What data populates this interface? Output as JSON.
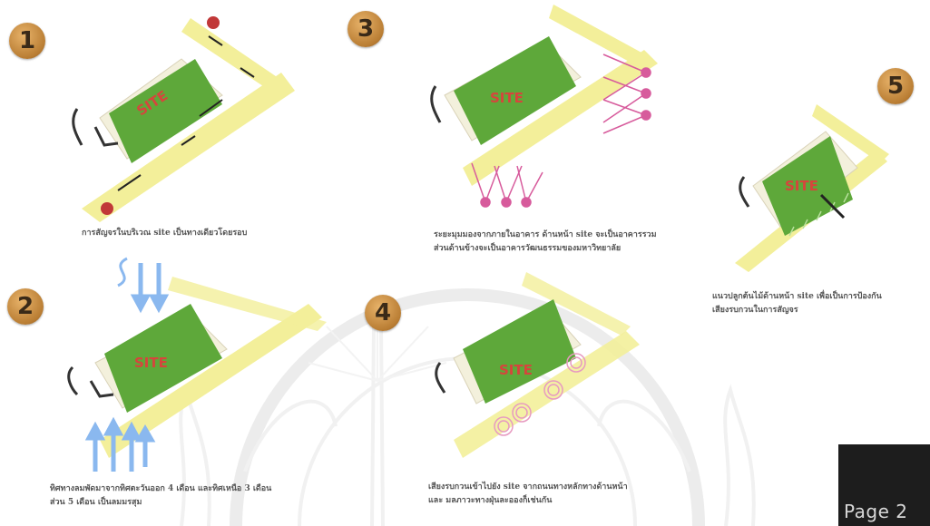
{
  "steps": [
    {
      "number": "1",
      "site_label": "SITE",
      "caption_lines": [
        "การสัญจรในบริเวณ site เป็นทางเดียวโดยรอบ"
      ]
    },
    {
      "number": "2",
      "site_label": "SITE",
      "caption_lines": [
        "ทิศทางลมพัดมาจากทิศตะวันออก 4 เดือน และทิศเหนือ 3 เดือน",
        "ส่วน 5 เดือน เป็นลมมรสุม"
      ]
    },
    {
      "number": "3",
      "site_label": "SITE",
      "caption_lines": [
        "ระยะมุมมองจากภายในอาคาร ด้านหน้า site จะเป็นอาคารรวม",
        "ส่วนด้านข้างจะเป็นอาคารวัฒนธรรมของมหาวิทยาลัย"
      ]
    },
    {
      "number": "4",
      "site_label": "SITE",
      "caption_lines": [
        "เสียงรบกวนเข้าไปยัง site จากถนนทางหลักทางด้านหน้า",
        "และ มลภาวะทางฝุ่นละอองก็เช่นกัน"
      ]
    },
    {
      "number": "5",
      "site_label": "SITE",
      "caption_lines": [
        "แนวปลูกต้นไม้ด้านหน้า site เพื่อเป็นการป้องกัน",
        "เสียงรบกวนในการสัญจร"
      ]
    }
  ],
  "page_label": "Page 2",
  "colors": {
    "site_green": "#5ea83a",
    "road_yellow": "#f3ef9a",
    "badge_orange": "#c98d42",
    "arrow_pink": "#d75b9c",
    "wind_blue": "#8ab8ef",
    "car_red": "#c13838"
  }
}
